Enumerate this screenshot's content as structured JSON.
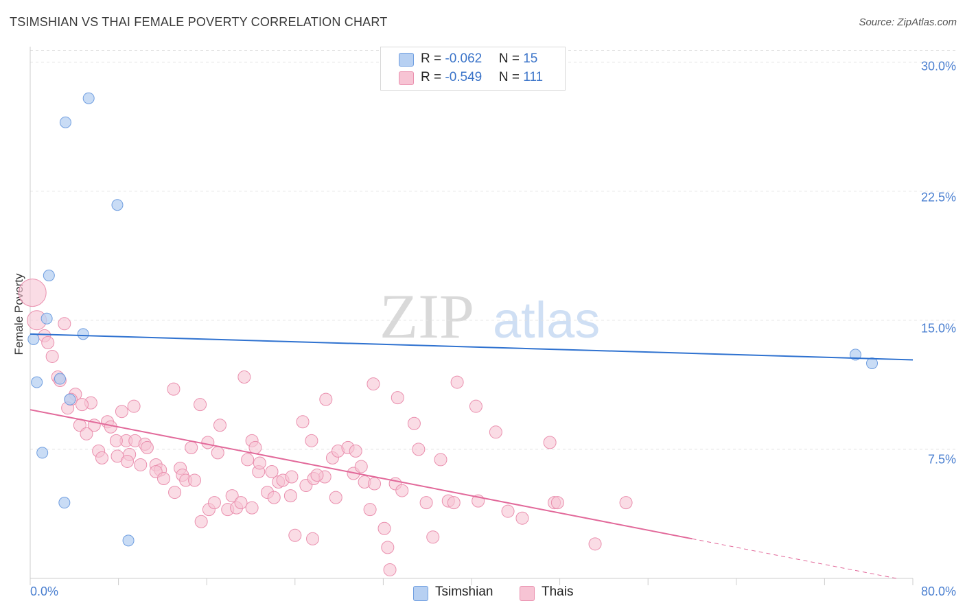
{
  "title": "TSIMSHIAN VS THAI FEMALE POVERTY CORRELATION CHART",
  "source": "Source: ZipAtlas.com",
  "watermark": {
    "part1": "ZIP",
    "part2": "atlas"
  },
  "colors": {
    "tsimshian_fill": "#b7d0f2",
    "tsimshian_stroke": "#6f9ee0",
    "tsimshian_line": "#2f72d0",
    "thais_fill": "#f7c4d4",
    "thais_stroke": "#ea8fae",
    "thais_line": "#e2699a",
    "tick_text": "#4a7fd0",
    "grid": "#e2e2e2"
  },
  "legend": {
    "rows": [
      {
        "r_label": "R = ",
        "r_value": "-0.062",
        "n_label": "N = ",
        "n_value": "15"
      },
      {
        "r_label": "R = ",
        "r_value": "-0.549",
        "n_label": "N = ",
        "n_value": "111"
      }
    ],
    "bottom": [
      "Tsimshian",
      "Thais"
    ]
  },
  "chart_data": {
    "type": "scatter",
    "title": "TSIMSHIAN VS THAI FEMALE POVERTY CORRELATION CHART",
    "xlabel": "",
    "ylabel": "Female Poverty",
    "xlim": [
      0,
      80
    ],
    "ylim": [
      0,
      30.5
    ],
    "y_ticks": [
      "30.0%",
      "22.5%",
      "15.0%",
      "7.5%"
    ],
    "y_tick_values": [
      30,
      22.5,
      15,
      7.5
    ],
    "x_tick_labels": [
      "0.0%",
      "80.0%"
    ],
    "x_tick_values": [
      0,
      80
    ],
    "grid": true,
    "legend_placement": "top-center",
    "series": [
      {
        "name": "Tsimshian",
        "r": -0.062,
        "n": 15,
        "points": [
          [
            5.3,
            27.9
          ],
          [
            3.2,
            26.5
          ],
          [
            7.9,
            21.7
          ],
          [
            1.7,
            17.6
          ],
          [
            1.5,
            15.1
          ],
          [
            4.8,
            14.2
          ],
          [
            0.3,
            13.9
          ],
          [
            2.7,
            11.6
          ],
          [
            0.6,
            11.4
          ],
          [
            3.6,
            10.4
          ],
          [
            1.1,
            7.3
          ],
          [
            3.1,
            4.4
          ],
          [
            8.9,
            2.2
          ],
          [
            74.8,
            13.0
          ],
          [
            76.3,
            12.5
          ]
        ],
        "trend": [
          [
            0,
            14.2
          ],
          [
            80,
            12.7
          ]
        ]
      },
      {
        "name": "Thais",
        "r": -0.549,
        "n": 111,
        "points": [
          [
            0.2,
            16.6
          ],
          [
            0.6,
            15.0
          ],
          [
            3.1,
            14.8
          ],
          [
            1.3,
            14.1
          ],
          [
            1.6,
            13.7
          ],
          [
            2.0,
            12.9
          ],
          [
            2.5,
            11.7
          ],
          [
            2.7,
            11.5
          ],
          [
            4.1,
            10.7
          ],
          [
            3.7,
            10.4
          ],
          [
            5.5,
            10.2
          ],
          [
            4.7,
            10.1
          ],
          [
            3.4,
            9.9
          ],
          [
            9.4,
            10.0
          ],
          [
            8.3,
            9.7
          ],
          [
            7.0,
            9.1
          ],
          [
            5.8,
            8.9
          ],
          [
            4.5,
            8.9
          ],
          [
            7.3,
            8.8
          ],
          [
            5.1,
            8.4
          ],
          [
            8.7,
            8.0
          ],
          [
            9.5,
            8.0
          ],
          [
            7.8,
            8.0
          ],
          [
            6.2,
            7.4
          ],
          [
            6.5,
            7.0
          ],
          [
            7.9,
            7.1
          ],
          [
            9.0,
            7.2
          ],
          [
            8.8,
            6.8
          ],
          [
            10.4,
            7.8
          ],
          [
            10.6,
            7.6
          ],
          [
            11.4,
            6.6
          ],
          [
            10.0,
            6.6
          ],
          [
            11.8,
            6.3
          ],
          [
            11.4,
            6.2
          ],
          [
            12.1,
            5.8
          ],
          [
            13.1,
            5.0
          ],
          [
            13.6,
            6.4
          ],
          [
            13.8,
            6.0
          ],
          [
            14.1,
            5.7
          ],
          [
            14.9,
            5.7
          ],
          [
            13.0,
            11.0
          ],
          [
            15.4,
            10.1
          ],
          [
            14.6,
            7.6
          ],
          [
            16.1,
            7.9
          ],
          [
            17.2,
            8.9
          ],
          [
            17.0,
            7.3
          ],
          [
            19.4,
            11.7
          ],
          [
            20.1,
            8.0
          ],
          [
            20.4,
            7.6
          ],
          [
            19.7,
            6.9
          ],
          [
            20.7,
            6.2
          ],
          [
            20.8,
            6.7
          ],
          [
            21.9,
            6.2
          ],
          [
            21.5,
            5.0
          ],
          [
            22.1,
            4.7
          ],
          [
            22.5,
            5.6
          ],
          [
            22.9,
            5.7
          ],
          [
            23.6,
            4.8
          ],
          [
            23.7,
            5.9
          ],
          [
            24.7,
            9.1
          ],
          [
            25.0,
            5.4
          ],
          [
            25.5,
            8.0
          ],
          [
            26.7,
            5.9
          ],
          [
            25.7,
            5.8
          ],
          [
            26.0,
            6.0
          ],
          [
            26.8,
            10.4
          ],
          [
            27.4,
            7.0
          ],
          [
            27.7,
            4.7
          ],
          [
            27.9,
            7.4
          ],
          [
            28.8,
            7.6
          ],
          [
            29.3,
            6.1
          ],
          [
            29.5,
            7.4
          ],
          [
            30.0,
            6.5
          ],
          [
            30.3,
            5.6
          ],
          [
            30.8,
            4.0
          ],
          [
            31.2,
            5.5
          ],
          [
            32.1,
            2.9
          ],
          [
            32.4,
            1.8
          ],
          [
            31.1,
            11.3
          ],
          [
            33.3,
            10.5
          ],
          [
            33.1,
            5.5
          ],
          [
            33.7,
            5.1
          ],
          [
            34.8,
            9.0
          ],
          [
            35.2,
            7.5
          ],
          [
            35.9,
            4.4
          ],
          [
            36.5,
            2.4
          ],
          [
            37.2,
            6.9
          ],
          [
            37.9,
            4.5
          ],
          [
            38.4,
            4.4
          ],
          [
            38.7,
            11.4
          ],
          [
            40.4,
            10.0
          ],
          [
            40.6,
            4.5
          ],
          [
            42.2,
            8.5
          ],
          [
            43.3,
            3.9
          ],
          [
            44.6,
            3.5
          ],
          [
            47.1,
            7.9
          ],
          [
            47.5,
            4.4
          ],
          [
            47.8,
            4.4
          ],
          [
            51.2,
            2.0
          ],
          [
            54.0,
            4.4
          ],
          [
            15.5,
            3.3
          ],
          [
            16.2,
            4.0
          ],
          [
            16.7,
            4.4
          ],
          [
            17.9,
            4.0
          ],
          [
            18.3,
            4.8
          ],
          [
            18.7,
            4.1
          ],
          [
            19.1,
            4.4
          ],
          [
            20.1,
            4.1
          ],
          [
            24.0,
            2.5
          ],
          [
            25.6,
            2.3
          ],
          [
            32.6,
            0.5
          ]
        ],
        "trend_solid": [
          [
            0,
            9.8
          ],
          [
            60,
            2.3
          ]
        ],
        "trend_dashed": [
          [
            60,
            2.3
          ],
          [
            78.5,
            0.0
          ]
        ]
      }
    ]
  }
}
